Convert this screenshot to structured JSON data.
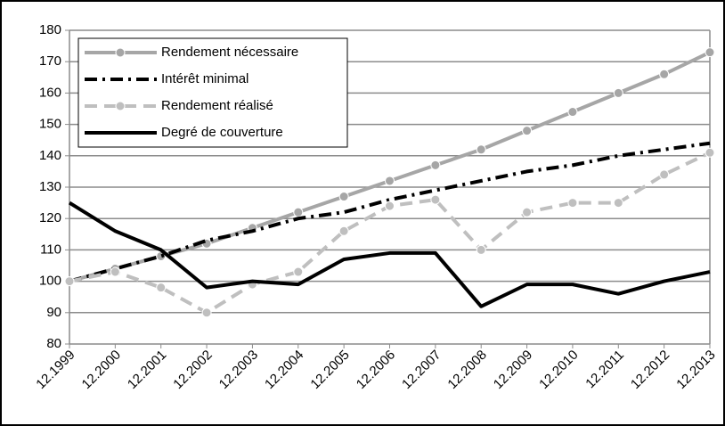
{
  "chart_data": {
    "type": "line",
    "categories": [
      "12.1999",
      "12.2000",
      "12.2001",
      "12.2002",
      "12.2003",
      "12.2004",
      "12.2005",
      "12.2006",
      "12.2007",
      "12.2008",
      "12.2009",
      "12.2010",
      "12.2011",
      "12.2012",
      "12.2013"
    ],
    "series": [
      {
        "name": "Rendement nécessaire",
        "color": "#a6a6a6",
        "dash": "none",
        "marker": true,
        "values": [
          100,
          104,
          108,
          112,
          117,
          122,
          127,
          132,
          137,
          142,
          148,
          154,
          160,
          166,
          173
        ]
      },
      {
        "name": "Intérêt minimal",
        "color": "#000000",
        "dash": "14 6 3 6",
        "marker": false,
        "values": [
          100,
          104,
          108,
          113,
          116,
          120,
          122,
          126,
          129,
          132,
          135,
          137,
          140,
          142,
          144
        ]
      },
      {
        "name": "Rendement réalisé",
        "color": "#bfbfbf",
        "dash": "14 8",
        "marker": true,
        "values": [
          100,
          103,
          98,
          90,
          99,
          103,
          116,
          124,
          126,
          110,
          122,
          125,
          125,
          134,
          141
        ]
      },
      {
        "name": "Degré de couverture",
        "color": "#000000",
        "dash": "none",
        "marker": false,
        "values": [
          125,
          116,
          110,
          98,
          100,
          99,
          107,
          109,
          109,
          92,
          99,
          99,
          96,
          100,
          103
        ]
      }
    ],
    "ylim": [
      80,
      180
    ],
    "yticks": [
      80,
      90,
      100,
      110,
      120,
      130,
      140,
      150,
      160,
      170,
      180
    ],
    "grid": true,
    "legend": "top-left"
  }
}
